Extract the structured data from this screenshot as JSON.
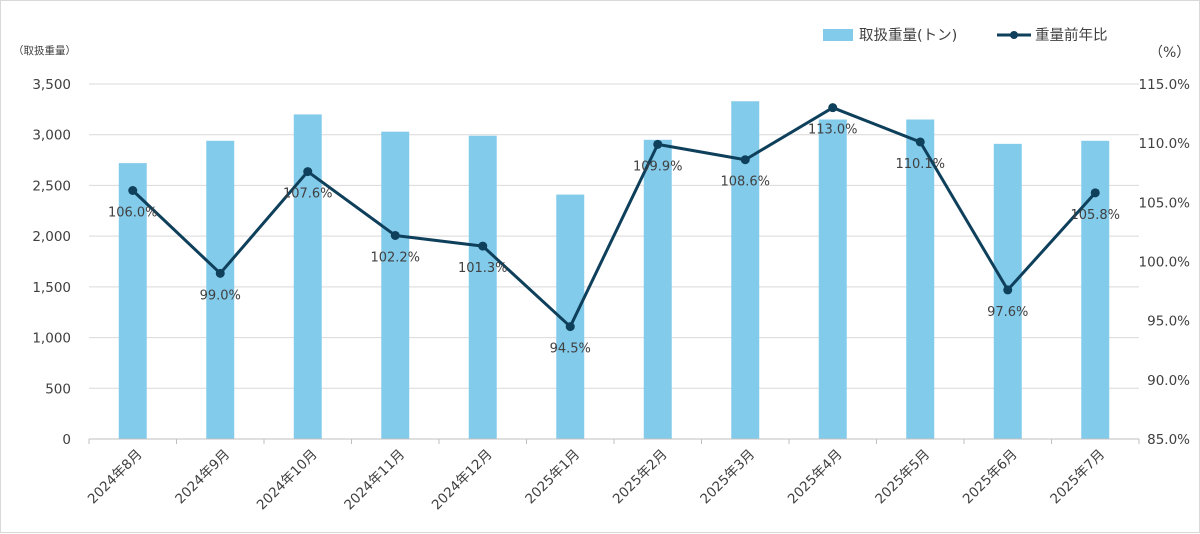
{
  "colors": {
    "bar": "#83cbeb",
    "line": "#0e3f5b",
    "grid": "#d9d9d9",
    "text": "#404040"
  },
  "legend": {
    "bar_label": "取扱重量(トン)",
    "line_label": "重量前年比",
    "position": "top-right"
  },
  "chart_data": {
    "type": "bar+line",
    "categories": [
      "2024年8月",
      "2024年9月",
      "2024年10月",
      "2024年11月",
      "2024年12月",
      "2025年1月",
      "2025年2月",
      "2025年3月",
      "2025年4月",
      "2025年5月",
      "2025年6月",
      "2025年7月"
    ],
    "series": [
      {
        "name": "取扱重量(トン)",
        "type": "bar",
        "axis": "left",
        "values": [
          2720,
          2940,
          3200,
          3030,
          2990,
          2410,
          2950,
          3330,
          3150,
          3150,
          2910,
          2940
        ]
      },
      {
        "name": "重量前年比",
        "type": "line",
        "axis": "right",
        "values": [
          106.0,
          99.0,
          107.6,
          102.2,
          101.3,
          94.5,
          109.9,
          108.6,
          113.0,
          110.1,
          97.6,
          105.8
        ],
        "labels": [
          "106.0%",
          "99.0%",
          "107.6%",
          "102.2%",
          "101.3%",
          "94.5%",
          "109.9%",
          "108.6%",
          "113.0%",
          "110.1%",
          "97.6%",
          "105.8%"
        ]
      }
    ],
    "y_left": {
      "unit_label": "（取扱重量）",
      "min": 0,
      "max": 3500,
      "step": 500,
      "tick_labels": [
        "0",
        "500",
        "1,000",
        "1,500",
        "2,000",
        "2,500",
        "3,000",
        "3,500"
      ]
    },
    "y_right": {
      "unit_label": "（%）",
      "min": 85,
      "max": 115,
      "step": 5,
      "tick_labels": [
        "85.0%",
        "90.0%",
        "95.0%",
        "100.0%",
        "105.0%",
        "110.0%",
        "115.0%"
      ]
    },
    "grid": true
  }
}
